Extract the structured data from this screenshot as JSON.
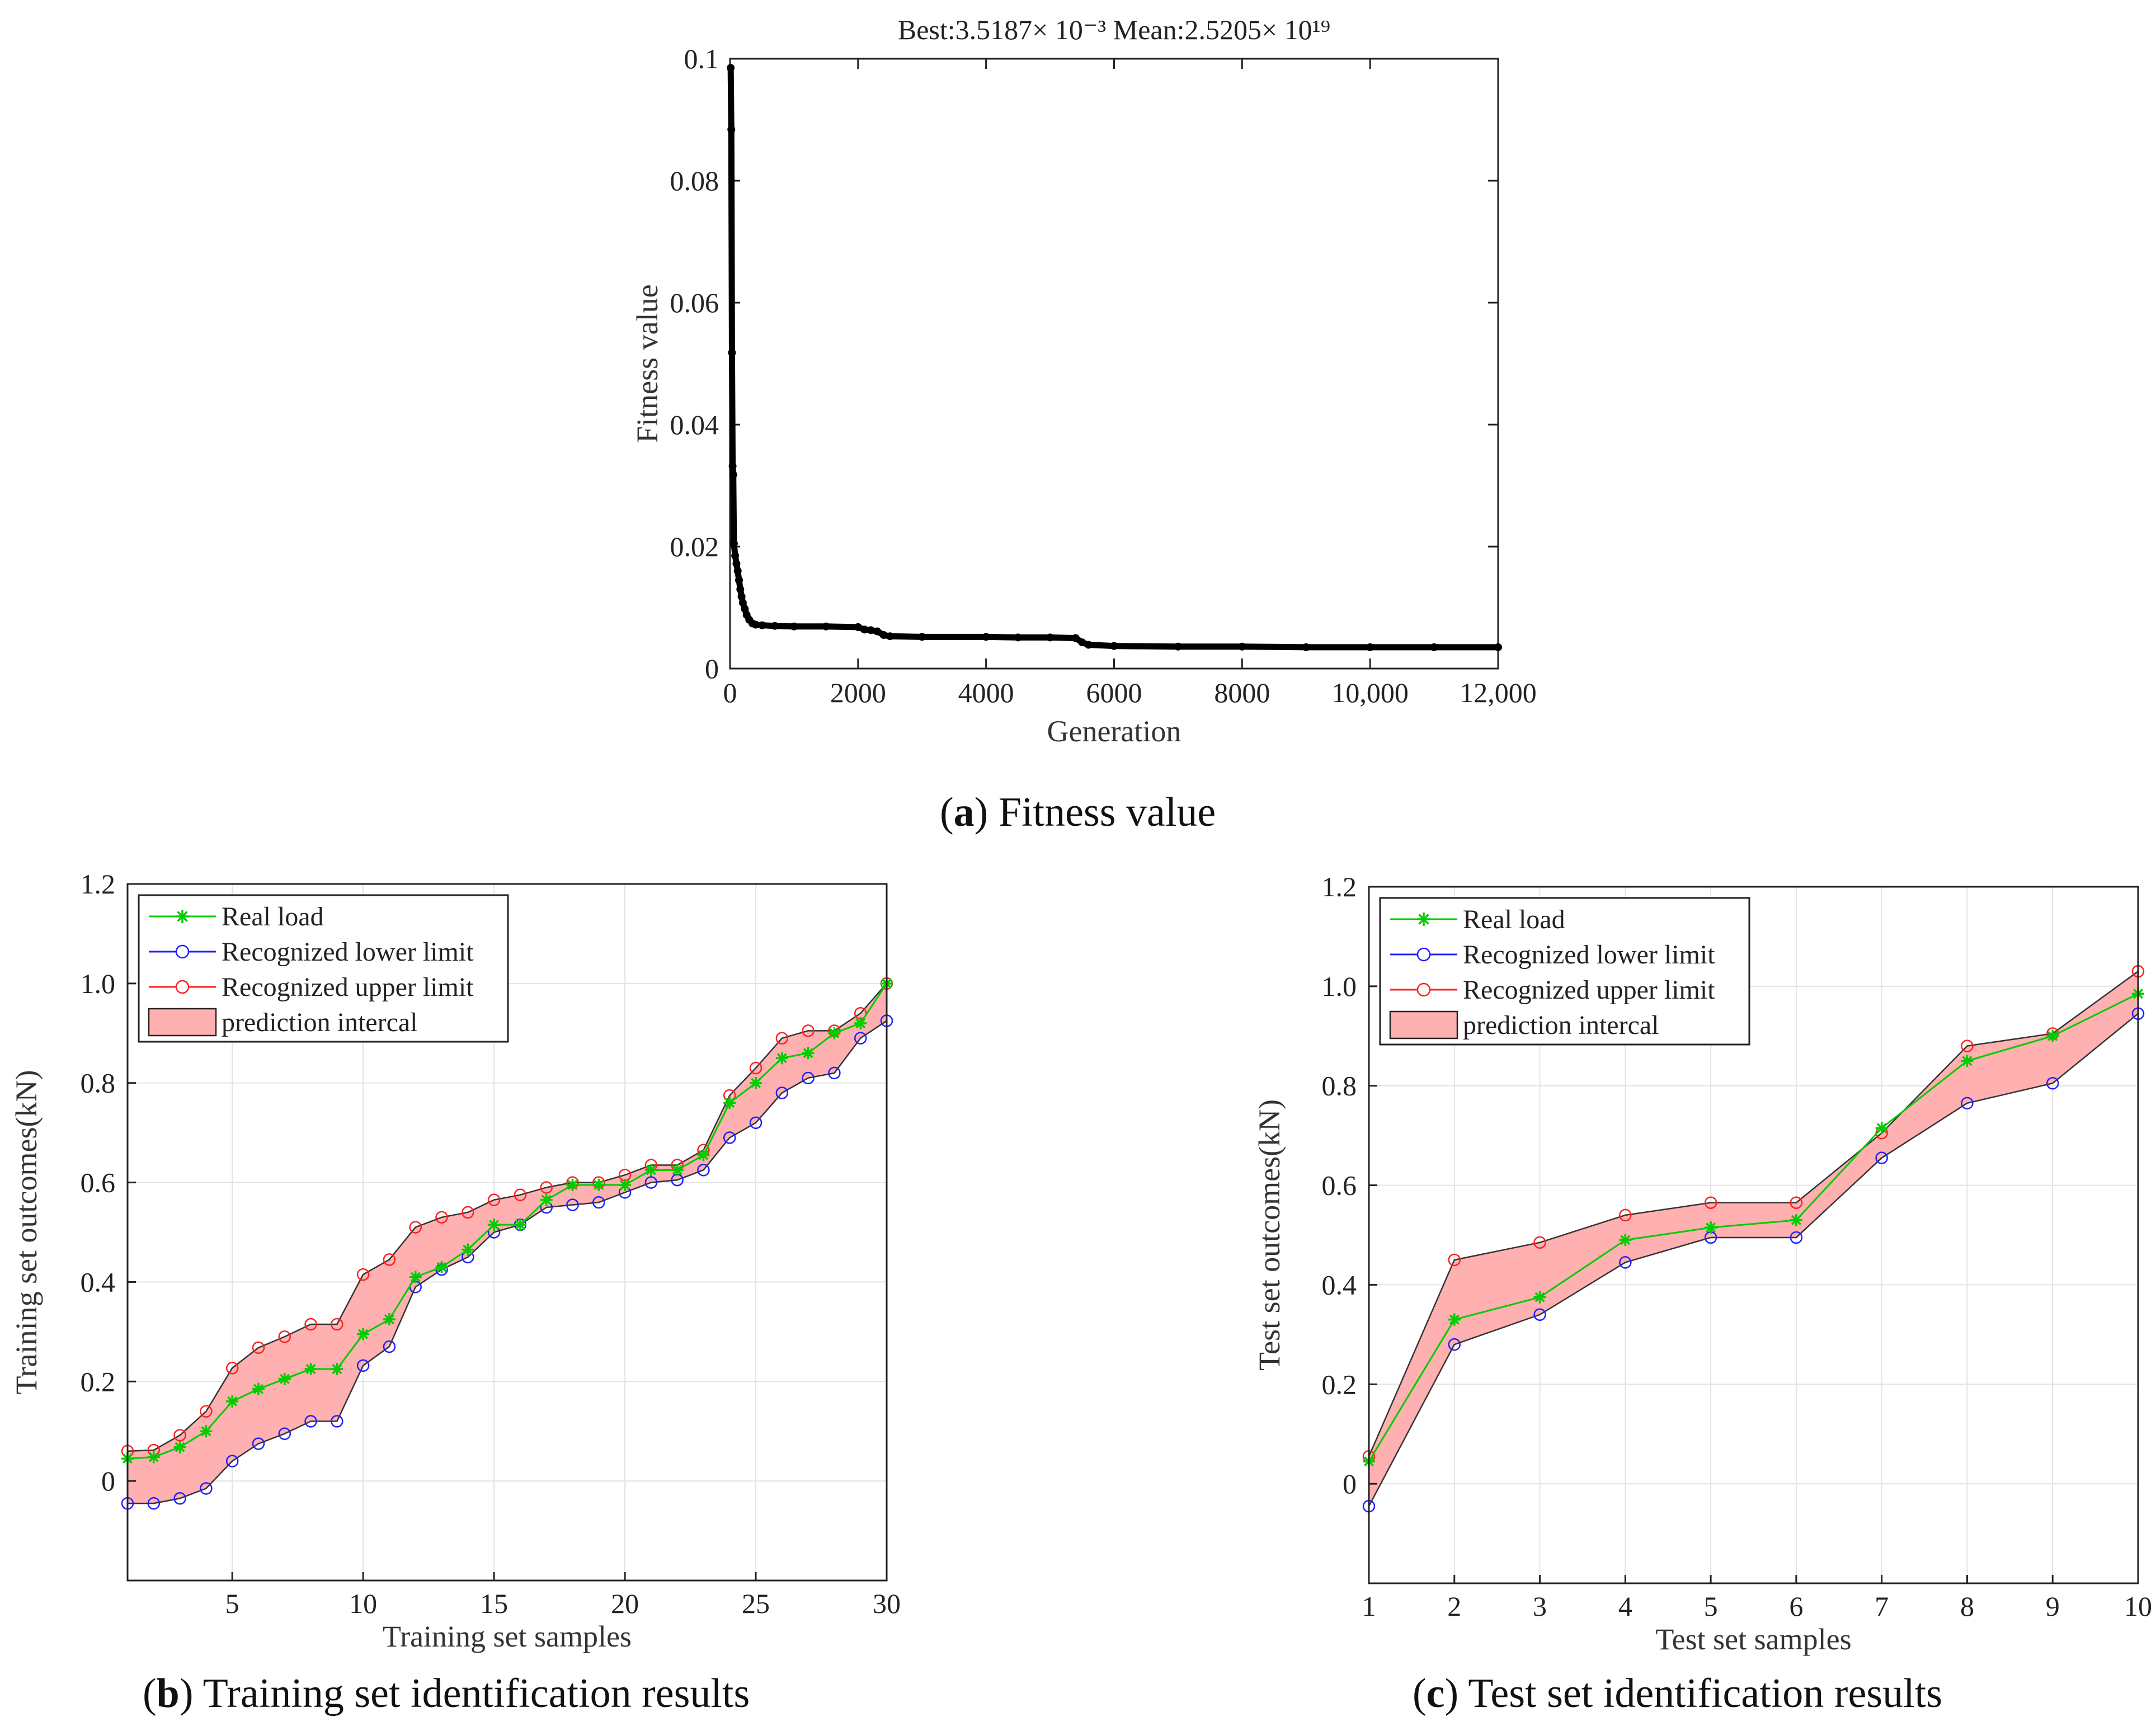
{
  "chart_data": [
    {
      "id": "a",
      "type": "scatter",
      "title": "Best:3.5187× 10⁻³   Mean:2.5205× 10¹⁹",
      "xlabel": "Generation",
      "ylabel": "Fitness value",
      "xlim": [
        0,
        12000
      ],
      "ylim": [
        0,
        0.1
      ],
      "xticks": [
        0,
        2000,
        4000,
        6000,
        8000,
        10000,
        12000
      ],
      "xtick_labels": [
        "0",
        "2000",
        "4000",
        "6000",
        "8000",
        "10,000",
        "12,000"
      ],
      "yticks": [
        0,
        0.02,
        0.04,
        0.06,
        0.08,
        0.1
      ],
      "ytick_labels": [
        "0",
        "0.02",
        "0.04",
        "0.06",
        "0.08",
        "0.1"
      ],
      "grid": false,
      "series": [
        {
          "name": "Fitness value",
          "color": "#000000",
          "points": [
            [
              10,
              0.0985
            ],
            [
              20,
              0.0884
            ],
            [
              30,
              0.0518
            ],
            [
              40,
              0.0332
            ],
            [
              50,
              0.0318
            ],
            [
              60,
              0.0205
            ],
            [
              80,
              0.0185
            ],
            [
              100,
              0.0172
            ],
            [
              120,
              0.016
            ],
            [
              140,
              0.0145
            ],
            [
              160,
              0.013
            ],
            [
              180,
              0.0118
            ],
            [
              200,
              0.0108
            ],
            [
              230,
              0.0098
            ],
            [
              260,
              0.0088
            ],
            [
              300,
              0.008
            ],
            [
              350,
              0.0074
            ],
            [
              400,
              0.0072
            ],
            [
              500,
              0.0071
            ],
            [
              700,
              0.007
            ],
            [
              1000,
              0.0069
            ],
            [
              1500,
              0.0069
            ],
            [
              2000,
              0.0068
            ],
            [
              2100,
              0.0064
            ],
            [
              2200,
              0.0063
            ],
            [
              2300,
              0.0061
            ],
            [
              2400,
              0.0055
            ],
            [
              2500,
              0.0053
            ],
            [
              3000,
              0.0052
            ],
            [
              4000,
              0.0052
            ],
            [
              4500,
              0.0051
            ],
            [
              5000,
              0.0051
            ],
            [
              5400,
              0.005
            ],
            [
              5500,
              0.0043
            ],
            [
              5600,
              0.0039
            ],
            [
              6000,
              0.0037
            ],
            [
              7000,
              0.0036
            ],
            [
              8000,
              0.0036
            ],
            [
              9000,
              0.0035
            ],
            [
              10000,
              0.0035
            ],
            [
              11000,
              0.0035
            ],
            [
              12000,
              0.0035
            ]
          ]
        }
      ]
    },
    {
      "id": "b",
      "type": "line",
      "title": "",
      "xlabel": "Training set samples",
      "ylabel": "Training set outcomes(kN)",
      "xlim": [
        1,
        30
      ],
      "ylim": [
        -0.2,
        1.2
      ],
      "xticks": [
        5,
        10,
        15,
        20,
        25,
        30
      ],
      "xtick_labels": [
        "5",
        "10",
        "15",
        "20",
        "25",
        "30"
      ],
      "yticks": [
        0,
        0.2,
        0.4,
        0.6,
        0.8,
        1.0,
        1.2
      ],
      "ytick_labels": [
        "0",
        "0.2",
        "0.4",
        "0.6",
        "0.8",
        "1.0",
        "1.2"
      ],
      "grid": true,
      "legend_position": "top-left",
      "x": [
        1,
        2,
        3,
        4,
        5,
        6,
        7,
        8,
        9,
        10,
        11,
        12,
        13,
        14,
        15,
        16,
        17,
        18,
        19,
        20,
        21,
        22,
        23,
        24,
        25,
        26,
        27,
        28,
        29,
        30
      ],
      "series": [
        {
          "name": "Real load",
          "color": "#00cc00",
          "marker": "star",
          "values": [
            0.045,
            0.048,
            0.068,
            0.1,
            0.16,
            0.185,
            0.205,
            0.225,
            0.225,
            0.295,
            0.325,
            0.41,
            0.43,
            0.465,
            0.515,
            0.515,
            0.565,
            0.595,
            0.595,
            0.595,
            0.625,
            0.625,
            0.655,
            0.76,
            0.8,
            0.85,
            0.86,
            0.9,
            0.92,
            1.0
          ]
        },
        {
          "name": "Recognized lower limit",
          "color": "#1f1fff",
          "marker": "circle",
          "values": [
            -0.045,
            -0.045,
            -0.035,
            -0.015,
            0.04,
            0.075,
            0.095,
            0.12,
            0.12,
            0.232,
            0.27,
            0.39,
            0.425,
            0.45,
            0.5,
            0.515,
            0.55,
            0.555,
            0.56,
            0.58,
            0.6,
            0.605,
            0.625,
            0.69,
            0.72,
            0.78,
            0.81,
            0.82,
            0.89,
            0.925
          ]
        },
        {
          "name": "Recognized upper limit",
          "color": "#ff1f1f",
          "marker": "circle",
          "values": [
            0.06,
            0.062,
            0.092,
            0.14,
            0.227,
            0.268,
            0.29,
            0.315,
            0.315,
            0.415,
            0.445,
            0.51,
            0.53,
            0.54,
            0.565,
            0.575,
            0.59,
            0.6,
            0.6,
            0.615,
            0.635,
            0.635,
            0.665,
            0.775,
            0.83,
            0.89,
            0.905,
            0.905,
            0.94,
            1.0
          ]
        }
      ],
      "band": {
        "name": "prediction intercal",
        "fill": "#ffb0b0"
      }
    },
    {
      "id": "c",
      "type": "line",
      "title": "",
      "xlabel": "Test set samples",
      "ylabel": "Test set outcomes(kN)",
      "xlim": [
        1,
        10
      ],
      "ylim": [
        -0.2,
        1.2
      ],
      "xticks": [
        1,
        2,
        3,
        4,
        5,
        6,
        7,
        8,
        9,
        10
      ],
      "xtick_labels": [
        "1",
        "2",
        "3",
        "4",
        "5",
        "6",
        "7",
        "8",
        "9",
        "10"
      ],
      "yticks": [
        0,
        0.2,
        0.4,
        0.6,
        0.8,
        1.0,
        1.2
      ],
      "ytick_labels": [
        "0",
        "0.2",
        "0.4",
        "0.6",
        "0.8",
        "1.0",
        "1.2"
      ],
      "grid": true,
      "legend_position": "top-left",
      "x": [
        1,
        2,
        3,
        4,
        5,
        6,
        7,
        8,
        9,
        10
      ],
      "series": [
        {
          "name": "Real load",
          "color": "#00cc00",
          "marker": "star",
          "values": [
            0.045,
            0.33,
            0.375,
            0.49,
            0.515,
            0.53,
            0.715,
            0.85,
            0.9,
            0.985
          ]
        },
        {
          "name": "Recognized lower limit",
          "color": "#1f1fff",
          "marker": "circle",
          "values": [
            -0.045,
            0.28,
            0.34,
            0.445,
            0.495,
            0.495,
            0.655,
            0.765,
            0.805,
            0.945
          ]
        },
        {
          "name": "Recognized upper limit",
          "color": "#ff1f1f",
          "marker": "circle",
          "values": [
            0.055,
            0.45,
            0.485,
            0.54,
            0.565,
            0.565,
            0.705,
            0.88,
            0.905,
            1.03
          ]
        }
      ],
      "band": {
        "name": "prediction intercal",
        "fill": "#ffb0b0"
      }
    }
  ],
  "captions": {
    "a": {
      "letter": "a",
      "text": " Fitness value"
    },
    "b": {
      "letter": "b",
      "text": " Training set identification results"
    },
    "c": {
      "letter": "c",
      "text": " Test set identification results"
    }
  }
}
